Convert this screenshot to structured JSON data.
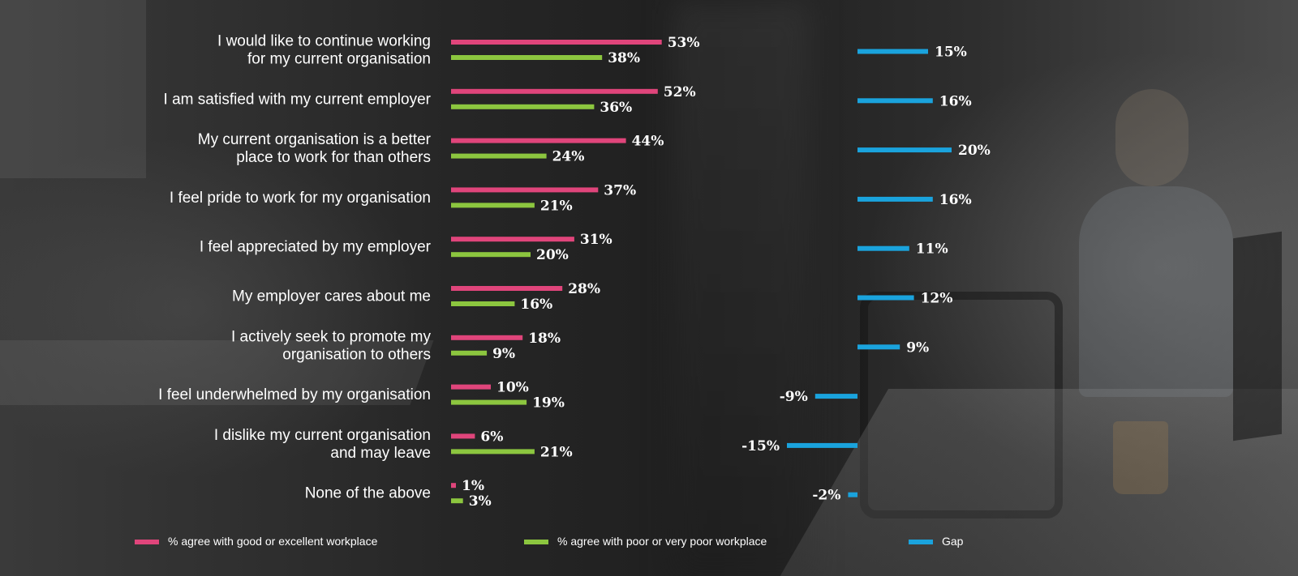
{
  "colors": {
    "good": "#e0457b",
    "poor": "#8cc63f",
    "gap": "#1aa3dd",
    "text": "#ffffff"
  },
  "chart_data": {
    "type": "bar",
    "categories": [
      [
        "I would like to continue working",
        "for my current organisation"
      ],
      [
        "I am satisfied with my current employer"
      ],
      [
        "My current organisation is a better",
        "place to work for than others"
      ],
      [
        "I feel pride to work for my organisation"
      ],
      [
        "I feel appreciated by my employer"
      ],
      [
        "My employer cares about me"
      ],
      [
        "I actively seek to promote my",
        "organisation to others"
      ],
      [
        "I feel underwhelmed by my organisation"
      ],
      [
        "I dislike my current organisation",
        "and may leave"
      ],
      [
        "None of the above"
      ]
    ],
    "series": [
      {
        "name": "% agree with good or excellent workplace",
        "values": [
          53,
          52,
          44,
          37,
          31,
          28,
          18,
          10,
          6,
          1
        ],
        "labels": [
          "53%",
          "52%",
          "44%",
          "37%",
          "31%",
          "28%",
          "18%",
          "10%",
          "6%",
          "1%"
        ]
      },
      {
        "name": "% agree with poor or very poor workplace",
        "values": [
          38,
          36,
          24,
          21,
          20,
          16,
          9,
          19,
          21,
          3
        ],
        "labels": [
          "38%",
          "36%",
          "24%",
          "21%",
          "20%",
          "16%",
          "9%",
          "19%",
          "21%",
          "3%"
        ]
      },
      {
        "name": "Gap",
        "values": [
          15,
          16,
          20,
          16,
          11,
          12,
          9,
          -9,
          -15,
          -2
        ],
        "labels": [
          "15%",
          "16%",
          "20%",
          "16%",
          "11%",
          "12%",
          "9%",
          "-9%",
          "-15%",
          "-2%"
        ]
      }
    ],
    "legend_position": "bottom",
    "grid": false
  }
}
